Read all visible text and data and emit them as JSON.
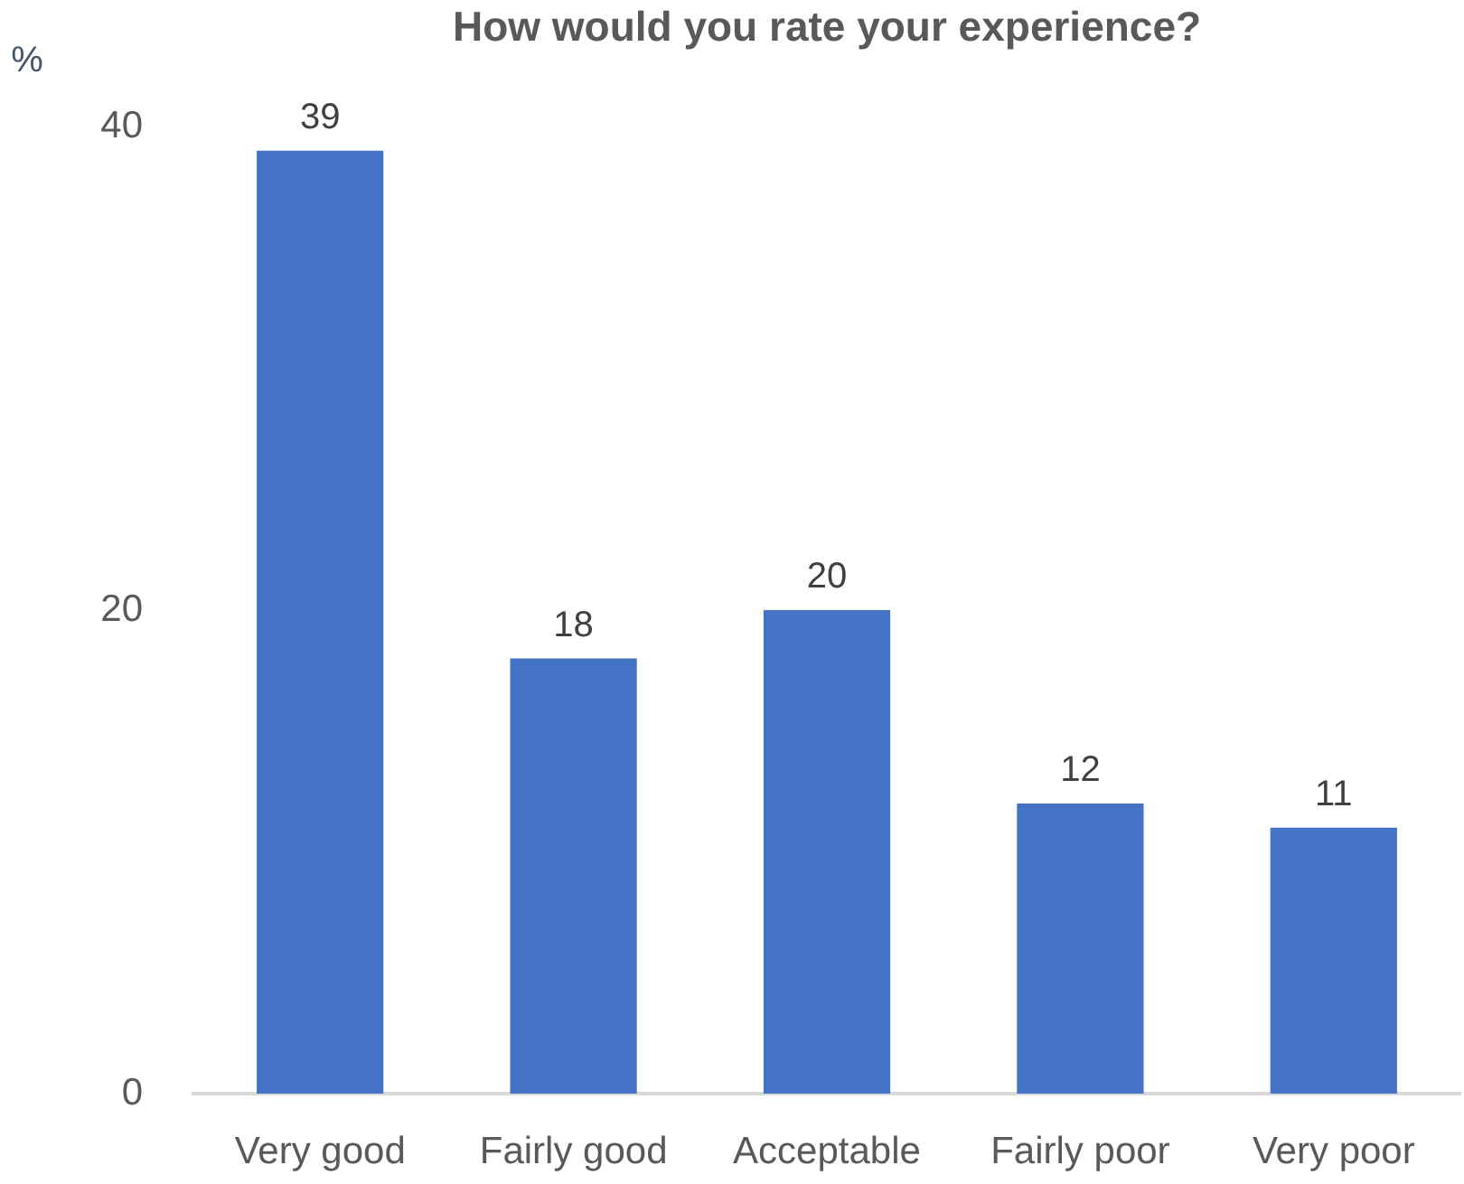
{
  "chart_data": {
    "type": "bar",
    "title": "How would you rate your experience?",
    "ylabel": "%",
    "categories": [
      "Very good",
      "Fairly good",
      "Acceptable",
      "Fairly poor",
      "Very poor"
    ],
    "values": [
      39,
      18,
      20,
      12,
      11
    ],
    "color": "#4472c4",
    "ylim": [
      0,
      40
    ],
    "yticks": [
      0,
      20,
      40
    ],
    "grid": false,
    "data_labels": true
  }
}
